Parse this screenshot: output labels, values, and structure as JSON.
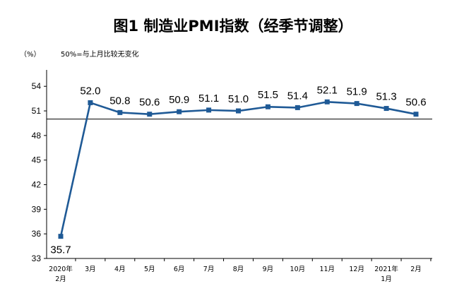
{
  "chart_data": {
    "type": "line",
    "title": "图1  制造业PMI指数（经季节调整）",
    "unit_label": "（%）",
    "note": "50%=与上月比较无变化",
    "categories": [
      [
        "2020年",
        "2月"
      ],
      [
        "3月"
      ],
      [
        "4月"
      ],
      [
        "5月"
      ],
      [
        "6月"
      ],
      [
        "7月"
      ],
      [
        "8月"
      ],
      [
        "9月"
      ],
      [
        "10月"
      ],
      [
        "11月"
      ],
      [
        "12月"
      ],
      [
        "2021年",
        "1月"
      ],
      [
        "2月"
      ]
    ],
    "values": [
      35.7,
      52.0,
      50.8,
      50.6,
      50.9,
      51.1,
      51.0,
      51.5,
      51.4,
      52.1,
      51.9,
      51.3,
      50.6
    ],
    "data_labels": [
      "35.7",
      "52.0",
      "50.8",
      "50.6",
      "50.9",
      "51.1",
      "51.0",
      "51.5",
      "51.4",
      "52.1",
      "51.9",
      "51.3",
      "50.6"
    ],
    "yticks": [
      33,
      36,
      39,
      42,
      45,
      48,
      51,
      54
    ],
    "ylim": [
      33,
      56
    ],
    "reference_value": 50,
    "grid": false,
    "colors": {
      "line": "#1f5a96",
      "marker": "#1f5a96",
      "axis": "#000000",
      "reference_line": "#000000"
    }
  }
}
